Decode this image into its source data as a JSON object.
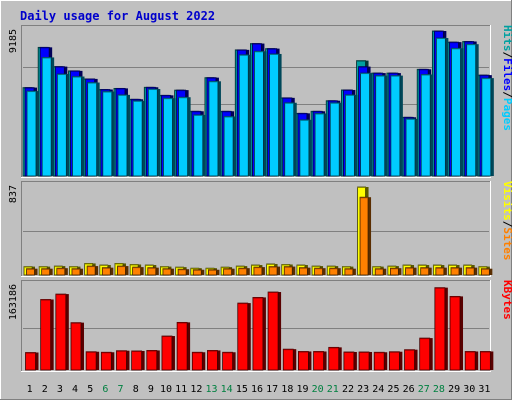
{
  "title": "Daily usage for August 2022",
  "colors": {
    "background": "#c0c0c0",
    "title": "#0000cc",
    "hits": "#00a0a0",
    "files": "#0000ff",
    "pages": "#00ccff",
    "visits": "#ffff00",
    "sites": "#ff8000",
    "kbytes": "#ff0000",
    "weekday_label": "#000000",
    "weekend_label": "#008040"
  },
  "chart_data": [
    {
      "type": "bar",
      "panel": "hits-files-pages",
      "ymax_label": "9185",
      "ylim": [
        0,
        9185
      ],
      "side_label_parts": [
        "Pages",
        "Files",
        "Hits"
      ],
      "categories": [
        "1",
        "2",
        "3",
        "4",
        "5",
        "6",
        "7",
        "8",
        "9",
        "10",
        "11",
        "12",
        "13",
        "14",
        "15",
        "16",
        "17",
        "18",
        "19",
        "20",
        "21",
        "22",
        "23",
        "24",
        "25",
        "26",
        "27",
        "28",
        "29",
        "30",
        "31"
      ],
      "series": [
        {
          "name": "Hits",
          "values": [
            5600,
            8150,
            6930,
            6660,
            6150,
            5480,
            5550,
            4860,
            5620,
            5110,
            5440,
            4100,
            6230,
            4100,
            7990,
            8390,
            8070,
            4950,
            3970,
            4100,
            4770,
            5450,
            7310,
            6520,
            6520,
            3720,
            6760,
            9185,
            8480,
            8520,
            6390
          ]
        },
        {
          "name": "Files",
          "values": [
            5600,
            8150,
            6930,
            6660,
            6150,
            5480,
            5550,
            4860,
            5620,
            5110,
            5440,
            4100,
            6230,
            4100,
            7990,
            8390,
            8070,
            4950,
            3970,
            4100,
            4770,
            5450,
            6930,
            6520,
            6520,
            3720,
            6760,
            9185,
            8480,
            8520,
            6390
          ]
        },
        {
          "name": "Pages",
          "values": [
            5380,
            7510,
            6460,
            6300,
            5920,
            5350,
            5140,
            4760,
            5510,
            4930,
            4990,
            3870,
            6000,
            3770,
            7680,
            7900,
            7730,
            4640,
            3560,
            3960,
            4640,
            5140,
            6520,
            6360,
            6360,
            3620,
            6430,
            8740,
            8090,
            8350,
            6200
          ]
        }
      ]
    },
    {
      "type": "bar",
      "panel": "visits-sites",
      "ymax_label": "837",
      "ylim": [
        0,
        837
      ],
      "side_label_parts": [
        "Sites",
        "Visits"
      ],
      "categories": [
        "1",
        "2",
        "3",
        "4",
        "5",
        "6",
        "7",
        "8",
        "9",
        "10",
        "11",
        "12",
        "13",
        "14",
        "15",
        "16",
        "17",
        "18",
        "19",
        "20",
        "21",
        "22",
        "23",
        "24",
        "25",
        "26",
        "27",
        "28",
        "29",
        "30",
        "31"
      ],
      "series": [
        {
          "name": "Visits",
          "values": [
            80,
            80,
            85,
            80,
            110,
            95,
            110,
            100,
            95,
            80,
            75,
            65,
            65,
            75,
            85,
            95,
            105,
            100,
            95,
            85,
            85,
            80,
            837,
            80,
            85,
            95,
            95,
            95,
            95,
            95,
            80
          ]
        },
        {
          "name": "Sites",
          "values": [
            60,
            60,
            65,
            60,
            85,
            70,
            85,
            75,
            70,
            60,
            55,
            50,
            50,
            60,
            65,
            75,
            80,
            80,
            70,
            65,
            65,
            60,
            740,
            60,
            65,
            70,
            70,
            70,
            70,
            70,
            60
          ]
        }
      ]
    },
    {
      "type": "bar",
      "panel": "kbytes",
      "ymax_label": "163186",
      "ylim": [
        0,
        163186
      ],
      "side_label_parts": [
        "KBytes"
      ],
      "categories": [
        "1",
        "2",
        "3",
        "4",
        "5",
        "6",
        "7",
        "8",
        "9",
        "10",
        "11",
        "12",
        "13",
        "14",
        "15",
        "16",
        "17",
        "18",
        "19",
        "20",
        "21",
        "22",
        "23",
        "24",
        "25",
        "26",
        "27",
        "28",
        "29",
        "30",
        "31"
      ],
      "weekend_days": [
        "6",
        "7",
        "13",
        "14",
        "20",
        "21",
        "27",
        "28"
      ],
      "series": [
        {
          "name": "KBytes",
          "values": [
            34000,
            137000,
            147500,
            92000,
            35500,
            34500,
            37500,
            37000,
            38000,
            66000,
            92500,
            34500,
            38000,
            34500,
            130000,
            141000,
            151500,
            40500,
            36000,
            36000,
            44000,
            35000,
            35000,
            34500,
            35500,
            39500,
            62000,
            160000,
            143000,
            36000,
            36000
          ]
        }
      ]
    }
  ]
}
